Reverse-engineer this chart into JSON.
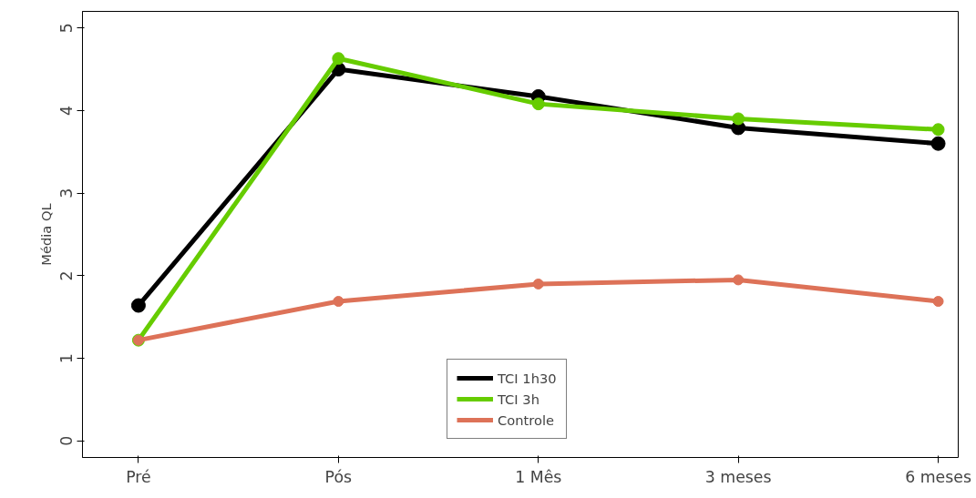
{
  "chart_data": {
    "type": "line",
    "ylabel": "Média QL",
    "categories": [
      "Pré",
      "Pós",
      "1 Mês",
      "3 meses",
      "6 meses"
    ],
    "series": [
      {
        "name": "TCI 1h30",
        "color": "#000000",
        "values": [
          1.64,
          4.5,
          4.17,
          3.79,
          3.6
        ]
      },
      {
        "name": "TCI 3h",
        "color": "#66cc00",
        "values": [
          1.22,
          4.63,
          4.08,
          3.9,
          3.77
        ]
      },
      {
        "name": "Controle",
        "color": "#dd7258",
        "values": [
          1.22,
          1.69,
          1.9,
          1.95,
          1.69
        ]
      }
    ],
    "ylim": [
      -0.2,
      5.2
    ],
    "yticks": [
      0,
      1,
      2,
      3,
      4,
      5
    ],
    "grid": false,
    "legend": "bottom",
    "marker": "circle",
    "line_style": "solid"
  }
}
